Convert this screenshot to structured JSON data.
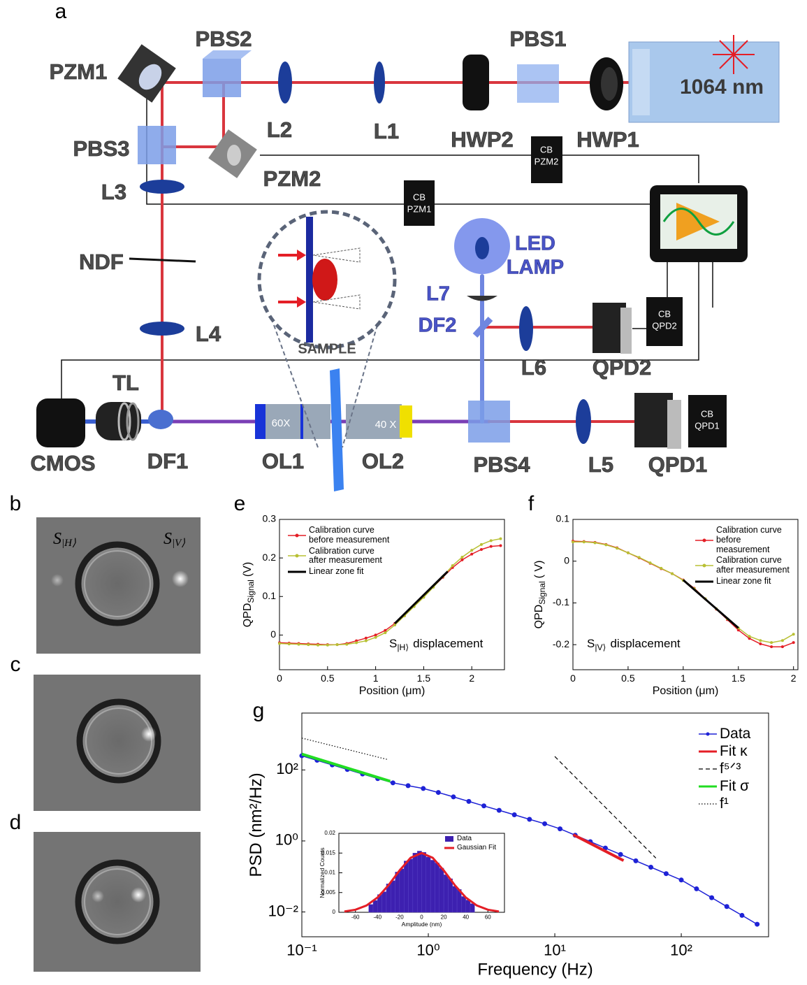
{
  "panel_labels": [
    "a",
    "b",
    "c",
    "d",
    "e",
    "f",
    "g"
  ],
  "diagram": {
    "labels": {
      "pzm1": "PZM1",
      "pbs2": "PBS2",
      "l2": "L2",
      "l1": "L1",
      "hwp2": "HWP2",
      "pbs1": "PBS1",
      "hwp1": "HWP1",
      "laser": "1064 nm",
      "pbs3": "PBS3",
      "pzm2": "PZM2",
      "l3": "L3",
      "ndf": "NDF",
      "led": "LED",
      "lamp": "LAMP",
      "l7": "L7",
      "df2": "DF2",
      "l6": "L6",
      "qpd2": "QPD2",
      "l4": "L4",
      "sample": "SAMPLE",
      "tl": "TL",
      "cmos": "CMOS",
      "df1": "DF1",
      "mag1": "60X",
      "ol1": "OL1",
      "mag2": "40 X",
      "ol2": "OL2",
      "pbs4": "PBS4",
      "l5": "L5",
      "qpd1": "QPD1"
    },
    "cb_boxes": [
      {
        "line1": "CB",
        "line2": "PZM2"
      },
      {
        "line1": "CB",
        "line2": "PZM1"
      },
      {
        "line1": "CB",
        "line2": "QPD2"
      },
      {
        "line1": "CB",
        "line2": "QPD1"
      }
    ]
  },
  "images": {
    "s_h": {
      "base": "S",
      "sub": "|H⟩"
    },
    "s_v": {
      "base": "S",
      "sub": "|V⟩"
    }
  },
  "chart_data": [
    {
      "type": "line",
      "ylabel": "QPD",
      "ylabel_sub": "Signal",
      "ylabel_unit": "(V)",
      "xlabel": "Position (μm)",
      "annotation": "S",
      "annotation_sub": "|H⟩",
      "annotation_rest": "displacement",
      "legend": "upper left",
      "xlim": [
        0,
        2.34
      ],
      "ylim": [
        -0.09,
        0.3
      ],
      "xticks": [
        0,
        0.5,
        1,
        1.5,
        2
      ],
      "yticks": [
        0,
        0.1,
        0.2,
        0.3
      ],
      "series": [
        {
          "name": "Calibration curve before measurement",
          "color": "#e41e26",
          "marker": true,
          "x": [
            0,
            0.1,
            0.2,
            0.3,
            0.4,
            0.5,
            0.6,
            0.7,
            0.8,
            0.9,
            1.0,
            1.1,
            1.2,
            1.3,
            1.4,
            1.5,
            1.6,
            1.7,
            1.8,
            1.9,
            2.0,
            2.1,
            2.2,
            2.3
          ],
          "values": [
            -0.02,
            -0.021,
            -0.022,
            -0.023,
            -0.024,
            -0.025,
            -0.025,
            -0.022,
            -0.015,
            -0.008,
            0.0,
            0.012,
            0.03,
            0.05,
            0.075,
            0.1,
            0.125,
            0.15,
            0.175,
            0.195,
            0.21,
            0.222,
            0.23,
            0.232
          ]
        },
        {
          "name": "Calibration curve after measurement",
          "color": "#b8c034",
          "marker": true,
          "x": [
            0,
            0.1,
            0.2,
            0.3,
            0.4,
            0.5,
            0.6,
            0.7,
            0.8,
            0.9,
            1.0,
            1.1,
            1.2,
            1.3,
            1.4,
            1.5,
            1.6,
            1.7,
            1.8,
            1.9,
            2.0,
            2.1,
            2.2,
            2.3
          ],
          "values": [
            -0.022,
            -0.023,
            -0.024,
            -0.025,
            -0.026,
            -0.026,
            -0.025,
            -0.024,
            -0.02,
            -0.015,
            -0.006,
            0.006,
            0.026,
            0.05,
            0.074,
            0.098,
            0.124,
            0.152,
            0.18,
            0.202,
            0.22,
            0.235,
            0.245,
            0.25
          ]
        },
        {
          "name": "Linear zone fit",
          "color": "#000000",
          "x": [
            1.2,
            1.75
          ],
          "values": [
            0.03,
            0.165
          ]
        }
      ]
    },
    {
      "type": "line",
      "ylabel": "QPD",
      "ylabel_sub": "Signal",
      "ylabel_unit": "( V)",
      "xlabel": "Position (μm)",
      "annotation": "S",
      "annotation_sub": "|V⟩",
      "annotation_rest": "displacement",
      "legend": "upper right",
      "xlim": [
        0,
        2.04
      ],
      "ylim": [
        -0.26,
        0.1
      ],
      "xticks": [
        0,
        0.5,
        1,
        1.5,
        2
      ],
      "yticks": [
        -0.2,
        -0.1,
        0,
        0.1
      ],
      "series": [
        {
          "name": "Calibration curve before measurement",
          "color": "#e41e26",
          "marker": true,
          "x": [
            0,
            0.1,
            0.2,
            0.3,
            0.4,
            0.5,
            0.6,
            0.7,
            0.8,
            0.9,
            1.0,
            1.1,
            1.2,
            1.3,
            1.4,
            1.5,
            1.6,
            1.7,
            1.8,
            1.9,
            2.0
          ],
          "values": [
            0.048,
            0.047,
            0.045,
            0.04,
            0.032,
            0.02,
            0.008,
            -0.005,
            -0.018,
            -0.03,
            -0.045,
            -0.065,
            -0.09,
            -0.115,
            -0.14,
            -0.165,
            -0.185,
            -0.198,
            -0.205,
            -0.205,
            -0.195
          ]
        },
        {
          "name": "Calibration curve after measurement",
          "color": "#b8c034",
          "marker": true,
          "x": [
            0,
            0.1,
            0.2,
            0.3,
            0.4,
            0.5,
            0.6,
            0.7,
            0.8,
            0.9,
            1.0,
            1.1,
            1.2,
            1.3,
            1.4,
            1.5,
            1.6,
            1.7,
            1.8,
            1.9,
            2.0
          ],
          "values": [
            0.046,
            0.046,
            0.044,
            0.039,
            0.031,
            0.02,
            0.009,
            -0.004,
            -0.017,
            -0.03,
            -0.046,
            -0.066,
            -0.09,
            -0.114,
            -0.138,
            -0.16,
            -0.18,
            -0.19,
            -0.195,
            -0.19,
            -0.175
          ]
        },
        {
          "name": "Linear zone fit",
          "color": "#000000",
          "x": [
            1.0,
            1.5
          ],
          "values": [
            -0.045,
            -0.16
          ]
        }
      ]
    },
    {
      "type": "line",
      "log_x": true,
      "log_y": true,
      "xlabel": "Frequency (Hz)",
      "ylabel": "PSD (nm²/Hz)",
      "legend": "upper right",
      "xlim": [
        0.1,
        490
      ],
      "ylim": [
        0.002,
        4000
      ],
      "xticks": [
        {
          "value": 0.1,
          "label": "10⁻¹"
        },
        {
          "value": 1,
          "label": "10⁰"
        },
        {
          "value": 10,
          "label": "10¹"
        },
        {
          "value": 100,
          "label": "10²"
        }
      ],
      "yticks": [
        {
          "value": 0.01,
          "label": "10⁻²"
        },
        {
          "value": 1,
          "label": "10⁰"
        },
        {
          "value": 100,
          "label": "10²"
        }
      ],
      "series": [
        {
          "name": "Data",
          "color": "#1e22d6",
          "marker": true,
          "x": [
            0.1,
            0.132,
            0.174,
            0.229,
            0.302,
            0.398,
            0.525,
            0.692,
            0.912,
            1.2,
            1.58,
            2.09,
            2.75,
            3.63,
            4.79,
            6.31,
            8.32,
            11.0,
            14.5,
            19.1,
            25.1,
            33.1,
            43.7,
            57.5,
            75.9,
            100,
            132,
            174,
            229,
            302,
            398
          ],
          "values": [
            251,
            187,
            139,
            103,
            76.9,
            57.1,
            43.3,
            36.0,
            30.0,
            23.2,
            17.4,
            13.0,
            9.73,
            7.28,
            5.45,
            4.07,
            3.05,
            2.19,
            1.45,
            0.955,
            0.631,
            0.417,
            0.275,
            0.182,
            0.12,
            0.0794,
            0.0448,
            0.0252,
            0.0142,
            0.008,
            0.00451
          ]
        },
        {
          "name": "Fit κ",
          "color": "#e41e26",
          "x": [
            14,
            35
          ],
          "values": [
            1.5,
            0.28
          ]
        },
        {
          "name": "f⁵ᐟ³",
          "color": "#000000",
          "style": "dashed",
          "x": [
            10,
            63
          ],
          "values": [
            240,
            0.33
          ]
        },
        {
          "name": "Fit σ",
          "color": "#22dd22",
          "x": [
            0.1,
            0.5
          ],
          "values": [
            280,
            48
          ]
        },
        {
          "name": "f¹",
          "color": "#000000",
          "style": "dotted",
          "x": [
            0.1,
            0.48
          ],
          "values": [
            790,
            195
          ]
        }
      ]
    },
    {
      "type": "histogram",
      "xlabel": "Amplitude (nm)",
      "ylabel": "Normalized Counts",
      "legend": "upper right",
      "xlim": [
        -75,
        75
      ],
      "ylim": [
        0,
        0.02
      ],
      "xticks": [
        -60,
        -40,
        -20,
        0,
        20,
        40,
        60
      ],
      "yticks": [
        0,
        0.005,
        0.01,
        0.015,
        0.02
      ],
      "bins": [
        -48,
        -44,
        -40,
        -36,
        -32,
        -28,
        -24,
        -20,
        -16,
        -12,
        -8,
        -4,
        0,
        4,
        8,
        12,
        16,
        20,
        24,
        28,
        32,
        36,
        40,
        44,
        48
      ],
      "series": [
        {
          "name": "Data",
          "color": "#3d20b0",
          "values": [
            0.002,
            0.003,
            0.0045,
            0.0052,
            0.0072,
            0.008,
            0.0102,
            0.011,
            0.013,
            0.0135,
            0.015,
            0.0155,
            0.0152,
            0.014,
            0.0132,
            0.0125,
            0.0112,
            0.0095,
            0.0085,
            0.0066,
            0.0058,
            0.004,
            0.0031,
            0.0022
          ]
        },
        {
          "name": "Gaussian Fit",
          "color": "#e41e26",
          "x": [
            -70,
            -60,
            -50,
            -40,
            -30,
            -20,
            -10,
            0,
            10,
            20,
            30,
            40,
            50,
            60,
            70
          ],
          "values": [
            0.00021,
            0.00066,
            0.00171,
            0.00374,
            0.00687,
            0.0106,
            0.0138,
            0.015,
            0.0138,
            0.0106,
            0.00687,
            0.00374,
            0.00171,
            0.00066,
            0.00021
          ]
        }
      ]
    }
  ]
}
